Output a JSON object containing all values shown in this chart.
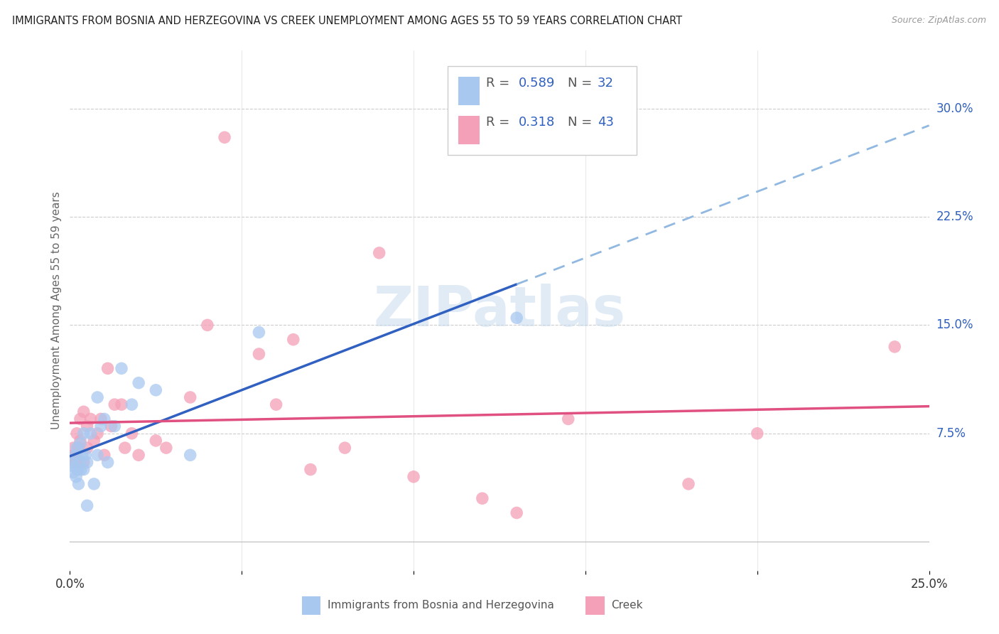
{
  "title": "IMMIGRANTS FROM BOSNIA AND HERZEGOVINA VS CREEK UNEMPLOYMENT AMONG AGES 55 TO 59 YEARS CORRELATION CHART",
  "source": "Source: ZipAtlas.com",
  "ylabel": "Unemployment Among Ages 55 to 59 years",
  "xlim": [
    0.0,
    0.25
  ],
  "ylim": [
    -0.02,
    0.34
  ],
  "ytick_positions": [
    0.075,
    0.15,
    0.225,
    0.3
  ],
  "ytick_labels": [
    "7.5%",
    "15.0%",
    "22.5%",
    "30.0%"
  ],
  "legend_R1": "0.589",
  "legend_N1": "32",
  "legend_R2": "0.318",
  "legend_N2": "43",
  "color_blue": "#A8C8F0",
  "color_pink": "#F4A0B8",
  "color_blue_line": "#3060C0",
  "color_pink_line": "#E05080",
  "color_blue_dashed": "#90B8E0",
  "watermark_color": "#C8DCF0",
  "bosnia_x": [
    0.0008,
    0.001,
    0.0012,
    0.0015,
    0.0018,
    0.002,
    0.0022,
    0.0025,
    0.003,
    0.003,
    0.0032,
    0.0035,
    0.004,
    0.004,
    0.0045,
    0.005,
    0.005,
    0.006,
    0.007,
    0.008,
    0.008,
    0.009,
    0.01,
    0.011,
    0.013,
    0.015,
    0.018,
    0.02,
    0.025,
    0.035,
    0.055,
    0.13
  ],
  "bosnia_y": [
    0.055,
    0.048,
    0.052,
    0.06,
    0.045,
    0.065,
    0.05,
    0.04,
    0.055,
    0.068,
    0.05,
    0.06,
    0.075,
    0.05,
    0.06,
    0.055,
    0.025,
    0.075,
    0.04,
    0.1,
    0.06,
    0.08,
    0.085,
    0.055,
    0.08,
    0.12,
    0.095,
    0.11,
    0.105,
    0.06,
    0.145,
    0.155
  ],
  "creek_x": [
    0.0008,
    0.001,
    0.0012,
    0.0015,
    0.002,
    0.002,
    0.0025,
    0.003,
    0.003,
    0.004,
    0.004,
    0.005,
    0.005,
    0.006,
    0.007,
    0.008,
    0.009,
    0.01,
    0.011,
    0.012,
    0.013,
    0.015,
    0.016,
    0.018,
    0.02,
    0.025,
    0.028,
    0.035,
    0.04,
    0.045,
    0.055,
    0.06,
    0.065,
    0.07,
    0.08,
    0.09,
    0.1,
    0.12,
    0.13,
    0.145,
    0.18,
    0.2,
    0.24
  ],
  "creek_y": [
    0.058,
    0.065,
    0.06,
    0.055,
    0.06,
    0.075,
    0.065,
    0.085,
    0.07,
    0.055,
    0.09,
    0.065,
    0.08,
    0.085,
    0.07,
    0.075,
    0.085,
    0.06,
    0.12,
    0.08,
    0.095,
    0.095,
    0.065,
    0.075,
    0.06,
    0.07,
    0.065,
    0.1,
    0.15,
    0.28,
    0.13,
    0.095,
    0.14,
    0.05,
    0.065,
    0.2,
    0.045,
    0.03,
    0.02,
    0.085,
    0.04,
    0.075,
    0.135
  ]
}
